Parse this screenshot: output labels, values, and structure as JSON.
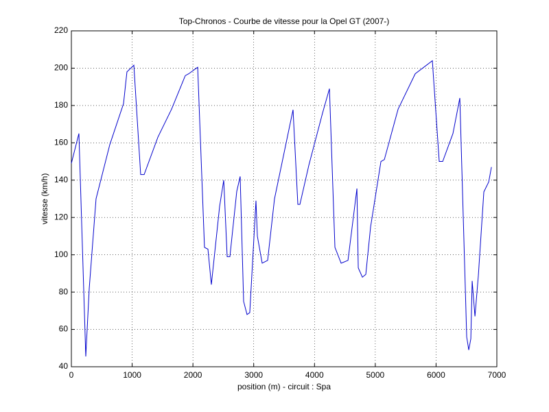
{
  "chart_data": {
    "type": "line",
    "title": "Top-Chronos - Courbe de vitesse pour la Opel GT (2007-)",
    "x_label": "position (m) - circuit : Spa",
    "y_label": "vitesse (km/h)",
    "x": [
      0,
      124,
      237,
      294,
      406,
      632,
      858,
      914,
      1028,
      1140,
      1197,
      1423,
      1648,
      1874,
      1930,
      2078,
      2190,
      2247,
      2303,
      2439,
      2507,
      2563,
      2608,
      2721,
      2777,
      2834,
      2890,
      2935,
      3037,
      3060,
      3139,
      3229,
      3342,
      3647,
      3726,
      3760,
      3907,
      4133,
      4246,
      4336,
      4438,
      4551,
      4698,
      4720,
      4788,
      4844,
      4923,
      5093,
      5149,
      5375,
      5657,
      5939,
      6052,
      6109,
      6278,
      6391,
      6504,
      6538,
      6572,
      6594,
      6640,
      6696,
      6786,
      6866,
      6911
    ],
    "series": [
      {
        "name": "vitesse",
        "color": "#0000cc",
        "values": [
          149,
          165,
          45.5,
          82,
          130,
          159,
          181,
          198,
          201.6,
          143,
          143,
          163,
          178,
          196,
          197,
          200.5,
          104,
          103,
          84,
          126,
          140,
          99,
          99,
          134,
          142,
          75,
          68,
          69,
          129,
          110,
          95.5,
          97,
          130,
          177.7,
          127,
          127,
          148,
          176,
          189,
          104,
          95.5,
          97,
          135.5,
          93,
          88,
          89.5,
          115,
          150,
          151,
          178,
          197,
          204,
          150,
          150,
          165,
          184,
          56,
          49,
          55,
          86,
          67,
          89,
          133.7,
          139,
          147
        ]
      }
    ],
    "xlim": [
      0,
      7000
    ],
    "xticks": [
      0,
      1000,
      2000,
      3000,
      4000,
      5000,
      6000,
      7000
    ],
    "ylim": [
      40,
      220
    ],
    "yticks": [
      40,
      60,
      80,
      100,
      120,
      140,
      160,
      180,
      200,
      220
    ],
    "grid": true
  }
}
